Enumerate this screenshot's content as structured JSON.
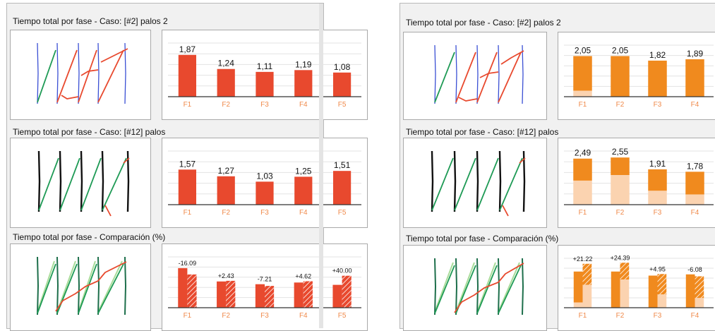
{
  "colors": {
    "red": "#e8492e",
    "orange": "#f08a1e",
    "light_orange": "#fbd3b0",
    "label": "#f08a4b",
    "green": "#1e9a55",
    "light_green": "#a9dc9a",
    "blue": "#3a4fd4",
    "black": "#111111"
  },
  "panels": [
    {
      "id": "left",
      "sections": [
        {
          "title": "Tiempo total por fase - Caso: [#2] palos 2",
          "chart": {
            "kind": "plain",
            "categories": [
              "F1",
              "F2",
              "F3",
              "F4",
              "F5"
            ],
            "values": [
              1.87,
              1.24,
              1.11,
              1.19,
              1.08
            ],
            "labels": [
              "1,87",
              "1,24",
              "1,11",
              "1,19",
              "1,08"
            ],
            "ymax": 2.4
          }
        },
        {
          "title": "Tiempo total por fase - Caso: [#12] palos",
          "chart": {
            "kind": "plain",
            "categories": [
              "F1",
              "F2",
              "F3",
              "F4",
              "F5"
            ],
            "values": [
              1.57,
              1.27,
              1.03,
              1.25,
              1.51
            ],
            "labels": [
              "1,57",
              "1,27",
              "1,03",
              "1,25",
              "1,51"
            ],
            "ymax": 2.4
          }
        },
        {
          "title": "Tiempo total por fase - Comparación (%)",
          "chart": {
            "kind": "compare",
            "categories": [
              "F1",
              "F2",
              "F3",
              "F4",
              "F5"
            ],
            "case_a": [
              1.87,
              1.24,
              1.11,
              1.19,
              1.08
            ],
            "case_b": [
              1.57,
              1.27,
              1.03,
              1.25,
              1.51
            ],
            "labels": [
              "-16.09",
              "+2.43",
              "-7.21",
              "+4.62",
              "+40.00"
            ],
            "ymax": 2.4
          }
        }
      ]
    },
    {
      "id": "right",
      "sections": [
        {
          "title": "Tiempo total por fase - Caso: [#2] palos 2",
          "chart": {
            "kind": "stacked",
            "categories": [
              "F1",
              "F2",
              "F3",
              "F4"
            ],
            "values": [
              2.05,
              2.05,
              1.82,
              1.89
            ],
            "lower": [
              0.3,
              0.0,
              0.0,
              0.0
            ],
            "labels": [
              "2,05",
              "2,05",
              "1,82",
              "1,89"
            ],
            "ymax": 2.6
          }
        },
        {
          "title": "Tiempo total por fase - Caso: [#12] palos",
          "chart": {
            "kind": "stacked",
            "categories": [
              "F1",
              "F2",
              "F3",
              "F4"
            ],
            "values": [
              2.49,
              2.55,
              1.91,
              1.78
            ],
            "lower": [
              1.3,
              1.6,
              0.75,
              0.55
            ],
            "labels": [
              "2,49",
              "2,55",
              "1,91",
              "1,78"
            ],
            "ymax": 2.9
          }
        },
        {
          "title": "Tiempo total por fase - Comparación (%)",
          "chart": {
            "kind": "compare_stacked",
            "categories": [
              "F1",
              "F2",
              "F3",
              "F4"
            ],
            "case_a": [
              2.05,
              2.05,
              1.82,
              1.89
            ],
            "case_a_lower": [
              0.3,
              0.0,
              0.0,
              0.0
            ],
            "case_b": [
              2.49,
              2.55,
              1.91,
              1.78
            ],
            "case_b_lower": [
              1.3,
              1.6,
              0.75,
              0.55
            ],
            "labels": [
              "+21.22",
              "+24.39",
              "+4.95",
              "-6.08"
            ],
            "ymax": 2.8
          }
        }
      ]
    }
  ],
  "chart_data": [
    {
      "type": "bar",
      "title": "Tiempo total por fase - Caso: [#2] palos 2",
      "categories": [
        "F1",
        "F2",
        "F3",
        "F4",
        "F5"
      ],
      "values": [
        1.87,
        1.24,
        1.11,
        1.19,
        1.08
      ]
    },
    {
      "type": "bar",
      "title": "Tiempo total por fase - Caso: [#12] palos",
      "categories": [
        "F1",
        "F2",
        "F3",
        "F4",
        "F5"
      ],
      "values": [
        1.57,
        1.27,
        1.03,
        1.25,
        1.51
      ]
    },
    {
      "type": "bar",
      "title": "Tiempo total por fase - Comparación (%)",
      "categories": [
        "F1",
        "F2",
        "F3",
        "F4",
        "F5"
      ],
      "values": [
        -16.09,
        2.43,
        -7.21,
        4.62,
        40.0
      ]
    },
    {
      "type": "bar",
      "title": "Tiempo total por fase - Caso: [#2] palos 2",
      "categories": [
        "F1",
        "F2",
        "F3",
        "F4"
      ],
      "values": [
        2.05,
        2.05,
        1.82,
        1.89
      ]
    },
    {
      "type": "bar",
      "title": "Tiempo total por fase - Caso: [#12] palos",
      "categories": [
        "F1",
        "F2",
        "F3",
        "F4"
      ],
      "values": [
        2.49,
        2.55,
        1.91,
        1.78
      ]
    },
    {
      "type": "bar",
      "title": "Tiempo total por fase - Comparación (%)",
      "categories": [
        "F1",
        "F2",
        "F3",
        "F4"
      ],
      "values": [
        21.22,
        24.39,
        4.95,
        -6.08
      ]
    }
  ]
}
